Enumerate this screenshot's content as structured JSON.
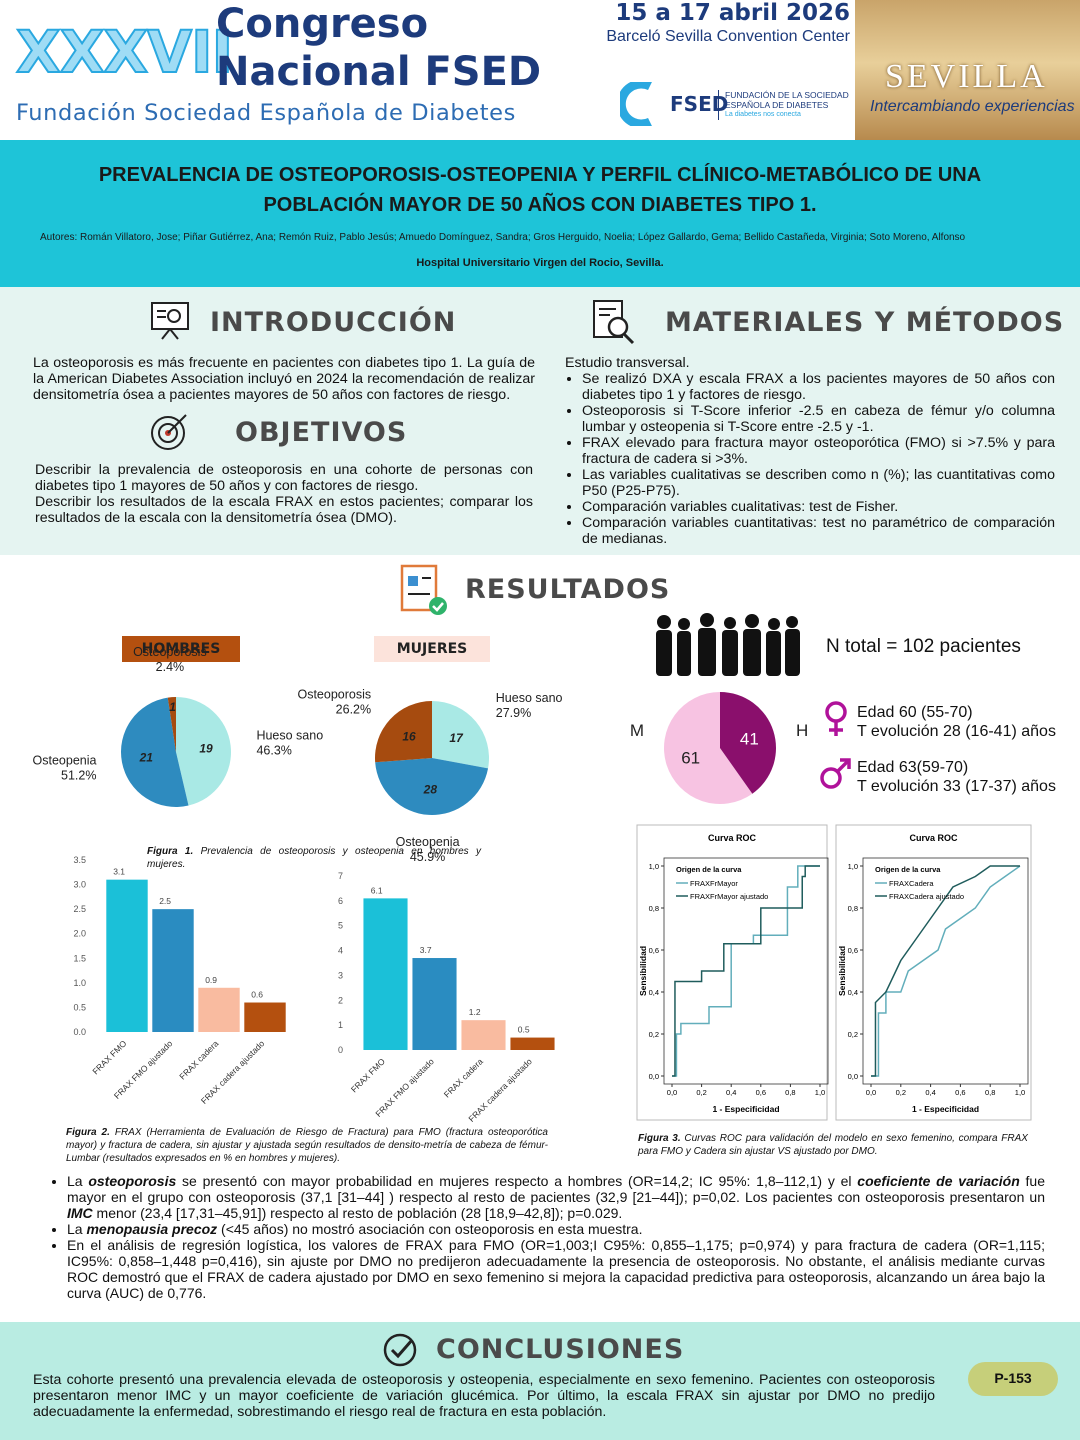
{
  "header": {
    "edition": "XXXVII",
    "line1": "Congreso",
    "line2": "Nacional FSED",
    "subtitle": "Fundación Sociedad Española de Diabetes",
    "dates": "15 a 17 abril 2026",
    "venue": "Barceló Sevilla Convention Center",
    "logo": {
      "name": "FSED",
      "line1": "FUNDACIÓN DE LA SOCIEDAD",
      "line2": "ESPAÑOLA DE DIABETES",
      "tagline": "La diabetes nos conecta"
    },
    "city": "SEVILLA",
    "motto": "Intercambiando experiencias"
  },
  "title": "PREVALENCIA DE OSTEOPOROSIS-OSTEOPENIA Y PERFIL CLÍNICO-METABÓLICO DE UNA POBLACIÓN MAYOR DE 50 AÑOS CON DIABETES TIPO 1.",
  "authors": "Autores: Román Villatoro, Jose; Piñar Gutiérrez, Ana;  Remón Ruiz, Pablo Jesús; Amuedo Domínguez, Sandra; Gros Herguido, Noelia; López Gallardo, Gema; Bellido Castañeda, Virginia; Soto Moreno, Alfonso",
  "hospital": "Hospital Universitario Virgen del Rocio, Sevilla.",
  "introduction": {
    "heading": "INTRODUCCIÓN",
    "text": "La osteoporosis es más frecuente en pacientes con diabetes tipo 1. La guía de la American Diabetes Association incluyó en 2024 la recomendación de realizar densitometría ósea a pacientes mayores de 50 años con factores de riesgo."
  },
  "objectives": {
    "heading": "OBJETIVOS",
    "paragraphs": [
      "Describir la prevalencia de osteoporosis en una cohorte de personas con diabetes tipo 1 mayores de 50 años y con factores de riesgo.",
      "Describir los resultados de la escala FRAX en estos pacientes; comparar los resultados de la escala con la densitometría ósea (DMO)."
    ]
  },
  "methods": {
    "heading": "MATERIALES Y MÉTODOS",
    "intro": "Estudio transversal.",
    "bullets": [
      "Se realizó DXA y escala FRAX a los pacientes mayores de 50 años con diabetes tipo 1 y factores de riesgo.",
      "Osteoporosis si T-Score inferior -2.5 en cabeza de fémur y/o columna lumbar y osteopenia si T-Score entre -2.5 y -1.",
      "FRAX elevado para fractura mayor osteoporótica (FMO) si >7.5% y para fractura de cadera si >3%.",
      "Las variables cualitativas se describen como n (%); las cuantitativas como P50 (P25-P75).",
      "Comparación variables cualitativas: test de Fisher.",
      "Comparación variables cuantitativas: test no paramétrico de comparación de medianas."
    ]
  },
  "results": {
    "heading": "RESULTADOS",
    "bullets": [
      [
        {
          "text": "La "
        },
        {
          "text": "osteoporosis",
          "style": "bold-italic"
        },
        {
          "text": " se presentó con mayor probabilidad en mujeres respecto a hombres (OR=14,2; IC 95%: 1,8–112,1) y el "
        },
        {
          "text": "coeficiente de variación",
          "style": "bold-italic"
        },
        {
          "text": " fue mayor en el grupo con osteoporosis (37,1 [31–44] ) respecto al resto de pacientes (32,9 [21–44]); p=0,02. Los pacientes con osteoporosis presentaron un "
        },
        {
          "text": "IMC",
          "style": "bold-italic"
        },
        {
          "text": " menor (23,4 [17,31–45,91]) respecto al resto de población (28 [18,9–42,8]); p=0.029."
        }
      ],
      [
        {
          "text": "La "
        },
        {
          "text": "menopausia precoz",
          "style": "bold-italic"
        },
        {
          "text": " (<45 años) no mostró asociación con osteoporosis en esta muestra."
        }
      ],
      [
        {
          "text": "En el análisis de regresión logística, los valores de FRAX para FMO (OR=1,003;I C95%: 0,855–1,175; p=0,974) y para fractura de cadera (OR=1,115; IC95%: 0,858–1,448 p=0,416), sin ajuste por DMO no predijeron adecuadamente la presencia de osteoporosis. No obstante, el análisis mediante curvas ROC demostró que el FRAX de cadera ajustado por DMO en sexo femenino si mejora  la capacidad predictiva para osteoporosis, alcanzando un área bajo la curva (AUC) de 0,776."
        }
      ]
    ]
  },
  "chart_data": [
    {
      "type": "pie",
      "title": "HOMBRES",
      "categories": [
        "Hueso sano",
        "Osteopenia",
        "Osteoporosis"
      ],
      "values": [
        46.3,
        51.2,
        2.4
      ],
      "value_labels": [
        "46.3%",
        "51.2%",
        "2.4%"
      ],
      "counts": [
        19,
        21,
        1
      ],
      "colors": [
        "#a9e9e5",
        "#2e8bbf",
        "#a64b0f"
      ]
    },
    {
      "type": "pie",
      "title": "MUJERES",
      "categories": [
        "Hueso sano",
        "Osteopenia",
        "Osteoporosis"
      ],
      "values": [
        27.9,
        45.9,
        26.2
      ],
      "value_labels": [
        "27.9%",
        "45.9%",
        "26.2%"
      ],
      "counts": [
        17,
        28,
        16
      ],
      "colors": [
        "#a9e9e5",
        "#2e8bbf",
        "#a64b0f"
      ]
    },
    {
      "type": "bar",
      "categories": [
        "FRAX FMO",
        "FRAX FMO ajustado",
        "FRAX cadera",
        "FRAX cadera ajustado"
      ],
      "values": [
        3.1,
        2.5,
        0.9,
        0.6
      ],
      "colors": [
        "#1bc0d8",
        "#2a8cc1",
        "#f9bba0",
        "#b4500f"
      ],
      "ylim": [
        0,
        3.5
      ],
      "yticks": [
        {
          "value": 0,
          "label": "0.0"
        },
        0.5,
        {
          "value": 1,
          "label": "1.0"
        },
        1.5,
        {
          "value": 2,
          "label": "2.0"
        },
        2.5,
        {
          "value": 3,
          "label": "3.0"
        },
        3.5
      ]
    },
    {
      "type": "bar",
      "categories": [
        "FRAX FMO",
        "FRAX FMO ajustado",
        "FRAX cadera",
        "FRAX cadera ajustado"
      ],
      "values": [
        6.1,
        3.7,
        1.2,
        0.5
      ],
      "colors": [
        "#1bc0d8",
        "#2a8cc1",
        "#f9bba0",
        "#b4500f"
      ],
      "ylim": [
        0,
        7
      ],
      "yticks": [
        0,
        1,
        2,
        3,
        4,
        5,
        6,
        7
      ]
    },
    {
      "type": "donut",
      "categories": [
        "M",
        "H"
      ],
      "values": [
        61,
        41
      ],
      "colors": [
        "#f7c3e2",
        "#8a0f6c"
      ]
    },
    {
      "type": "roc",
      "title": "Curva ROC",
      "xlabel": "1 - Especificidad",
      "ylabel": "Sensibilidad",
      "legend_title": "Origen de la curva",
      "xlim": [
        0,
        1
      ],
      "ylim": [
        0,
        1
      ],
      "xticks": [
        {
          "value": 0,
          "label": "0,0"
        },
        {
          "value": 0.2,
          "label": "0,2"
        },
        {
          "value": 0.4,
          "label": "0,4"
        },
        {
          "value": 0.6,
          "label": "0,6"
        },
        {
          "value": 0.8,
          "label": "0,8"
        },
        {
          "value": 1,
          "label": "1,0"
        }
      ],
      "yticks": [
        {
          "value": 0,
          "label": "0,0"
        },
        {
          "value": 0.2,
          "label": "0,2"
        },
        {
          "value": 0.4,
          "label": "0,4"
        },
        {
          "value": 0.6,
          "label": "0,6"
        },
        {
          "value": 0.8,
          "label": "0,8"
        },
        {
          "value": 1,
          "label": "1,0"
        }
      ],
      "series": [
        {
          "name": "FRAXFrMayor",
          "color": "#62aebb",
          "x": [
            0,
            0.03,
            0.03,
            0.06,
            0.06,
            0.25,
            0.25,
            0.4,
            0.4,
            0.55,
            0.55,
            0.78,
            0.78,
            0.85,
            0.85,
            1
          ],
          "y": [
            0,
            0,
            0.2,
            0.2,
            0.25,
            0.25,
            0.33,
            0.33,
            0.63,
            0.63,
            0.67,
            0.67,
            0.9,
            0.9,
            1,
            1
          ]
        },
        {
          "name": "FRAXFrMayor ajustado",
          "color": "#1f5c5c",
          "x": [
            0,
            0.02,
            0.02,
            0.2,
            0.2,
            0.35,
            0.35,
            0.6,
            0.6,
            0.88,
            0.88,
            0.9,
            0.9,
            1
          ],
          "y": [
            0,
            0,
            0.45,
            0.45,
            0.5,
            0.5,
            0.63,
            0.63,
            0.8,
            0.8,
            0.95,
            0.95,
            1,
            1
          ]
        }
      ]
    },
    {
      "type": "roc",
      "title": "Curva ROC",
      "xlabel": "1 - Especificidad",
      "ylabel": "Sensibilidad",
      "legend_title": "Origen de la curva",
      "xlim": [
        0,
        1
      ],
      "ylim": [
        0,
        1
      ],
      "xticks": [
        {
          "value": 0,
          "label": "0,0"
        },
        {
          "value": 0.2,
          "label": "0,2"
        },
        {
          "value": 0.4,
          "label": "0,4"
        },
        {
          "value": 0.6,
          "label": "0,6"
        },
        {
          "value": 0.8,
          "label": "0,8"
        },
        {
          "value": 1,
          "label": "1,0"
        }
      ],
      "yticks": [
        {
          "value": 0,
          "label": "0,0"
        },
        {
          "value": 0.2,
          "label": "0,2"
        },
        {
          "value": 0.4,
          "label": "0,4"
        },
        {
          "value": 0.6,
          "label": "0,6"
        },
        {
          "value": 0.8,
          "label": "0,8"
        },
        {
          "value": 1,
          "label": "1,0"
        }
      ],
      "series": [
        {
          "name": "FRAXCadera",
          "color": "#62aebb",
          "x": [
            0,
            0.05,
            0.05,
            0.1,
            0.1,
            0.2,
            0.25,
            0.35,
            0.45,
            0.5,
            0.6,
            0.7,
            0.8,
            0.9,
            1
          ],
          "y": [
            0,
            0,
            0.3,
            0.3,
            0.4,
            0.4,
            0.5,
            0.55,
            0.6,
            0.7,
            0.75,
            0.8,
            0.9,
            0.95,
            1
          ]
        },
        {
          "name": "FRAXCadera ajustado",
          "color": "#1f5c5c",
          "x": [
            0,
            0.03,
            0.03,
            0.1,
            0.2,
            0.3,
            0.4,
            0.55,
            0.7,
            0.8,
            1
          ],
          "y": [
            0,
            0,
            0.35,
            0.4,
            0.55,
            0.65,
            0.75,
            0.9,
            0.95,
            1,
            1
          ]
        }
      ]
    }
  ],
  "figures": [
    {
      "label": "Figura 1.",
      "text": "Prevalencia de osteoporosis y osteopenia en hombres y mujeres."
    },
    {
      "label": "Figura 2.",
      "text": "FRAX (Herramienta de Evaluación de Riesgo de Fractura) para FMO (fractura osteoporótica mayor) y fractura de cadera, sin ajustar y ajustada según resultados de densito-metría de cabeza de fémur-Lumbar (resultados expresados en % en hombres y mujeres)."
    },
    {
      "label": "Figura 3.",
      "text": "Curvas ROC para validación del modelo en sexo femenino, compara FRAX para FMO y Cadera sin ajustar VS ajustado por DMO."
    }
  ],
  "demographics": {
    "total": "N total = 102 pacientes",
    "female": [
      "Edad 60 (55-70)",
      "T evolución 28 (16-41) años"
    ],
    "male": [
      "Edad 63(59-70)",
      "T evolución 33 (17-37) años"
    ]
  },
  "conclusions": {
    "heading": "CONCLUSIONES",
    "text": "Esta cohorte presentó una prevalencia elevada de osteoporosis y osteopenia, especialmente en sexo femenino. Pacientes con osteoporosis presentaron menor IMC y un mayor coeficiente de variación glucémica. Por último, la escala FRAX sin ajustar por DMO no predijo adecuadamente la enfermedad, sobrestimando el riesgo real de fractura en esta población."
  },
  "poster_id": "P-153"
}
